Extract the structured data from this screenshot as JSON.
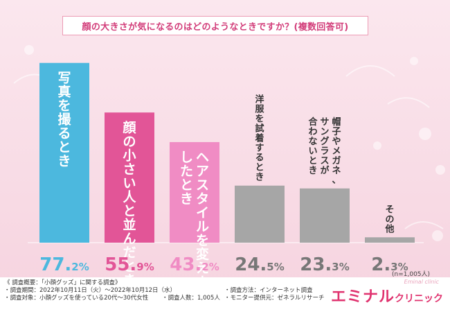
{
  "chart_data": {
    "type": "bar",
    "title": "顔の大きさが気になるのはどのようなときですか？(複数回答可)",
    "categories": [
      "写真を撮るとき",
      "顔の小さい人と並んだとき",
      "ヘアスタイルを変えようとしたとき",
      "洋服を試着するとき",
      "帽子やメガネ、サングラスが合わないとき",
      "その他"
    ],
    "values": [
      77.2,
      55.9,
      43.2,
      24.5,
      23.3,
      2.3
    ],
    "value_labels": [
      {
        "int": "77.",
        "dec": "2%"
      },
      {
        "int": "55.",
        "dec": "9%"
      },
      {
        "int": "43.",
        "dec": "2%"
      },
      {
        "int": "24.",
        "dec": "5%"
      },
      {
        "int": "23.",
        "dec": "3%"
      },
      {
        "int": "2.",
        "dec": "3%"
      }
    ],
    "colors": [
      "#4cb8de",
      "#e25597",
      "#f08cc4",
      "#a6a6a6",
      "#a6a6a6",
      "#a6a6a6"
    ],
    "label_colors": [
      "#4cb8de",
      "#e25597",
      "#f08cc4",
      "#777777",
      "#777777",
      "#777777"
    ],
    "ylim": [
      0,
      80
    ]
  },
  "note": "(n=1,005人)",
  "survey": {
    "heading": "《 調査概要：「小顔グッズ」に関する調査》",
    "period": "・調査期間：2022年10月11日（火）～2022年10月12日（水）",
    "method": "・調査方法：インターネット調査",
    "target": "・調査対象：小顔グッズを使っている20代〜30代女性",
    "count": "・調査人数：1,005人",
    "provider": "・モニター提供元：ゼネラルリサーチ"
  },
  "logo": {
    "main": "エミナル",
    "sub": "クリニック",
    "script": "Eminal clinic"
  }
}
